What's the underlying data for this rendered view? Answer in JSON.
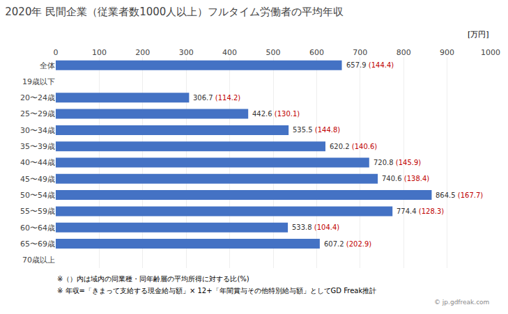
{
  "chart_data": {
    "type": "bar",
    "orientation": "horizontal",
    "title": "2020年 民間企業（従業者数1000人以上）フルタイム労働者の平均年収",
    "xlabel": "[万円]",
    "categories": [
      "全体",
      "19歳以下",
      "20〜24歳",
      "25〜29歳",
      "30〜34歳",
      "35〜39歳",
      "40〜44歳",
      "45〜49歳",
      "50〜54歳",
      "55〜59歳",
      "60〜64歳",
      "65〜69歳",
      "70歳以上"
    ],
    "values": [
      657.9,
      0,
      306.7,
      442.6,
      535.5,
      620.2,
      720.8,
      740.6,
      864.5,
      774.4,
      533.8,
      607.2,
      0
    ],
    "value_labels": [
      "657.9",
      null,
      "306.7",
      "442.6",
      "535.5",
      "620.2",
      "720.8",
      "740.6",
      "864.5",
      "774.4",
      "533.8",
      "607.2",
      null
    ],
    "ratio_labels": [
      "(144.4)",
      null,
      "(114.2)",
      "(130.1)",
      "(144.8)",
      "(140.6)",
      "(145.9)",
      "(138.4)",
      "(167.7)",
      "(128.3)",
      "(104.4)",
      "(202.9)",
      null
    ],
    "color": "#4472C4",
    "xlim": [
      0,
      1000
    ],
    "xticks": [
      0,
      100,
      200,
      300,
      400,
      500,
      600,
      700,
      800,
      900,
      1000
    ],
    "grid": true,
    "data_labels": true,
    "annotations": [
      "※（）内は域内の同業種・同年齢層の平均所得に対する比(%)",
      "※ 年収=「きまって支給する現金給与額」× 12+「年間賞与その他特別給与額」としてGD Freak推計",
      "© jp.gdfreak.com"
    ]
  }
}
